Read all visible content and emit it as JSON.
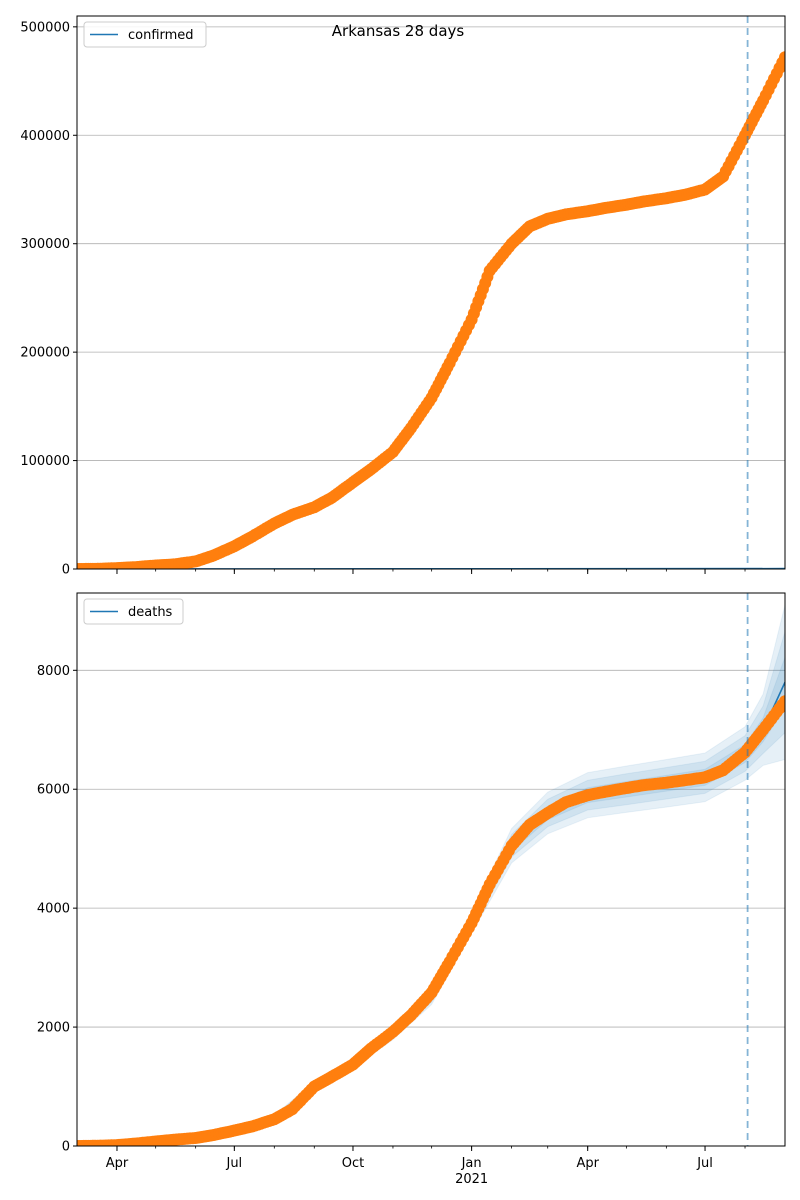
{
  "figure": {
    "title": "Arkansas 28 days"
  },
  "chart_data": [
    {
      "type": "line",
      "panel": "top",
      "title": "Arkansas 28 days",
      "xlabel": "",
      "ylabel": "",
      "x_axis": {
        "range": [
          "2020-03-01",
          "2021-09-01"
        ],
        "ticks": [
          {
            "date": "2020-04-01",
            "label": "Apr"
          },
          {
            "date": "2020-07-01",
            "label": "Jul"
          },
          {
            "date": "2020-10-01",
            "label": "Oct"
          },
          {
            "date": "2021-01-01",
            "label": "Jan",
            "sublabel": "2021"
          },
          {
            "date": "2021-04-01",
            "label": "Apr"
          },
          {
            "date": "2021-07-01",
            "label": "Jul"
          }
        ],
        "show_labels": false
      },
      "ylim": [
        0,
        510000
      ],
      "yticks": [
        0,
        100000,
        200000,
        300000,
        400000,
        500000
      ],
      "grid": "y",
      "legend": {
        "placement": "upper-left",
        "entries": [
          "confirmed"
        ]
      },
      "forecast_start": "2021-08-03",
      "series": [
        {
          "name": "confirmed",
          "style": "line",
          "color": "#1f77b4",
          "points": [
            [
              "2020-03-01",
              0
            ],
            [
              "2021-09-01",
              400
            ]
          ]
        },
        {
          "style": "observed-markers",
          "color": "#ff7f0e",
          "points": [
            [
              "2020-03-01",
              0
            ],
            [
              "2020-03-15",
              100
            ],
            [
              "2020-04-01",
              800
            ],
            [
              "2020-04-15",
              1700
            ],
            [
              "2020-05-01",
              3200
            ],
            [
              "2020-05-15",
              4200
            ],
            [
              "2020-06-01",
              7000
            ],
            [
              "2020-06-15",
              12500
            ],
            [
              "2020-07-01",
              21000
            ],
            [
              "2020-07-15",
              30000
            ],
            [
              "2020-08-01",
              42000
            ],
            [
              "2020-08-15",
              50000
            ],
            [
              "2020-09-01",
              57000
            ],
            [
              "2020-09-15",
              66000
            ],
            [
              "2020-10-01",
              80000
            ],
            [
              "2020-10-15",
              92000
            ],
            [
              "2020-11-01",
              108000
            ],
            [
              "2020-11-15",
              130000
            ],
            [
              "2020-12-01",
              158000
            ],
            [
              "2020-12-15",
              190000
            ],
            [
              "2021-01-01",
              230000
            ],
            [
              "2021-01-15",
              275000
            ],
            [
              "2021-02-01",
              300000
            ],
            [
              "2021-02-15",
              316000
            ],
            [
              "2021-03-01",
              323000
            ],
            [
              "2021-03-15",
              327000
            ],
            [
              "2021-04-01",
              330000
            ],
            [
              "2021-04-15",
              333000
            ],
            [
              "2021-05-01",
              336000
            ],
            [
              "2021-05-15",
              339000
            ],
            [
              "2021-06-01",
              342000
            ],
            [
              "2021-06-15",
              345000
            ],
            [
              "2021-07-01",
              350000
            ],
            [
              "2021-07-15",
              362000
            ],
            [
              "2021-08-01",
              400000
            ],
            [
              "2021-08-15",
              432000
            ],
            [
              "2021-09-01",
              472000
            ]
          ]
        }
      ]
    },
    {
      "type": "line",
      "panel": "bottom",
      "xlabel": "",
      "ylabel": "",
      "x_axis": {
        "range": [
          "2020-03-01",
          "2021-09-01"
        ],
        "ticks": [
          {
            "date": "2020-04-01",
            "label": "Apr"
          },
          {
            "date": "2020-07-01",
            "label": "Jul"
          },
          {
            "date": "2020-10-01",
            "label": "Oct"
          },
          {
            "date": "2021-01-01",
            "label": "Jan",
            "sublabel": "2021"
          },
          {
            "date": "2021-04-01",
            "label": "Apr"
          },
          {
            "date": "2021-07-01",
            "label": "Jul"
          }
        ],
        "show_labels": true
      },
      "ylim": [
        0,
        9300
      ],
      "yticks": [
        0,
        2000,
        4000,
        6000,
        8000
      ],
      "grid": "y",
      "legend": {
        "placement": "upper-left",
        "entries": [
          "deaths"
        ]
      },
      "forecast_start": "2021-08-03",
      "series": [
        {
          "name": "deaths",
          "style": "line",
          "color": "#1f77b4",
          "points": [
            [
              "2020-03-01",
              0
            ],
            [
              "2020-04-01",
              10
            ],
            [
              "2020-05-01",
              70
            ],
            [
              "2020-06-01",
              140
            ],
            [
              "2020-07-01",
              260
            ],
            [
              "2020-08-01",
              480
            ],
            [
              "2020-09-01",
              1020
            ],
            [
              "2020-10-01",
              1380
            ],
            [
              "2020-11-01",
              1880
            ],
            [
              "2020-12-01",
              2500
            ],
            [
              "2021-01-01",
              3750
            ],
            [
              "2021-02-01",
              5050
            ],
            [
              "2021-03-01",
              5600
            ],
            [
              "2021-04-01",
              5900
            ],
            [
              "2021-05-01",
              6000
            ],
            [
              "2021-06-01",
              6100
            ],
            [
              "2021-07-01",
              6200
            ],
            [
              "2021-08-01",
              6600
            ],
            [
              "2021-08-15",
              7000
            ],
            [
              "2021-09-01",
              7800
            ]
          ]
        },
        {
          "style": "uncertainty-bands",
          "color": "#1f77b4",
          "bands": [
            {
              "spread": [
                0,
                0,
                10,
                20,
                30,
                40,
                60,
                70,
                90,
                120,
                170,
                290,
                350,
                380,
                390,
                400,
                410,
                450,
                600,
                1300
              ]
            },
            {
              "spread": [
                0,
                0,
                6,
                12,
                20,
                28,
                40,
                48,
                60,
                80,
                110,
                190,
                230,
                250,
                260,
                265,
                270,
                300,
                400,
                850
              ]
            },
            {
              "spread": [
                0,
                0,
                3,
                6,
                10,
                14,
                20,
                24,
                30,
                40,
                55,
                95,
                115,
                125,
                130,
                132,
                135,
                150,
                200,
                420
              ]
            }
          ]
        },
        {
          "style": "observed-markers",
          "color": "#ff7f0e",
          "points": [
            [
              "2020-03-01",
              0
            ],
            [
              "2020-03-15",
              3
            ],
            [
              "2020-04-01",
              15
            ],
            [
              "2020-04-15",
              40
            ],
            [
              "2020-05-01",
              75
            ],
            [
              "2020-05-15",
              105
            ],
            [
              "2020-06-01",
              135
            ],
            [
              "2020-06-15",
              185
            ],
            [
              "2020-07-01",
              260
            ],
            [
              "2020-07-15",
              330
            ],
            [
              "2020-08-01",
              450
            ],
            [
              "2020-08-15",
              620
            ],
            [
              "2020-09-01",
              1000
            ],
            [
              "2020-09-15",
              1170
            ],
            [
              "2020-10-01",
              1370
            ],
            [
              "2020-10-15",
              1640
            ],
            [
              "2020-11-01",
              1920
            ],
            [
              "2020-11-15",
              2200
            ],
            [
              "2020-12-01",
              2580
            ],
            [
              "2020-12-15",
              3100
            ],
            [
              "2021-01-01",
              3750
            ],
            [
              "2021-01-15",
              4400
            ],
            [
              "2021-02-01",
              5050
            ],
            [
              "2021-02-15",
              5400
            ],
            [
              "2021-03-01",
              5600
            ],
            [
              "2021-03-15",
              5780
            ],
            [
              "2021-04-01",
              5900
            ],
            [
              "2021-04-15",
              5960
            ],
            [
              "2021-05-01",
              6020
            ],
            [
              "2021-05-15",
              6070
            ],
            [
              "2021-06-01",
              6110
            ],
            [
              "2021-06-15",
              6150
            ],
            [
              "2021-07-01",
              6200
            ],
            [
              "2021-07-15",
              6320
            ],
            [
              "2021-08-01",
              6620
            ],
            [
              "2021-08-15",
              7000
            ],
            [
              "2021-09-01",
              7480
            ]
          ]
        }
      ]
    }
  ]
}
